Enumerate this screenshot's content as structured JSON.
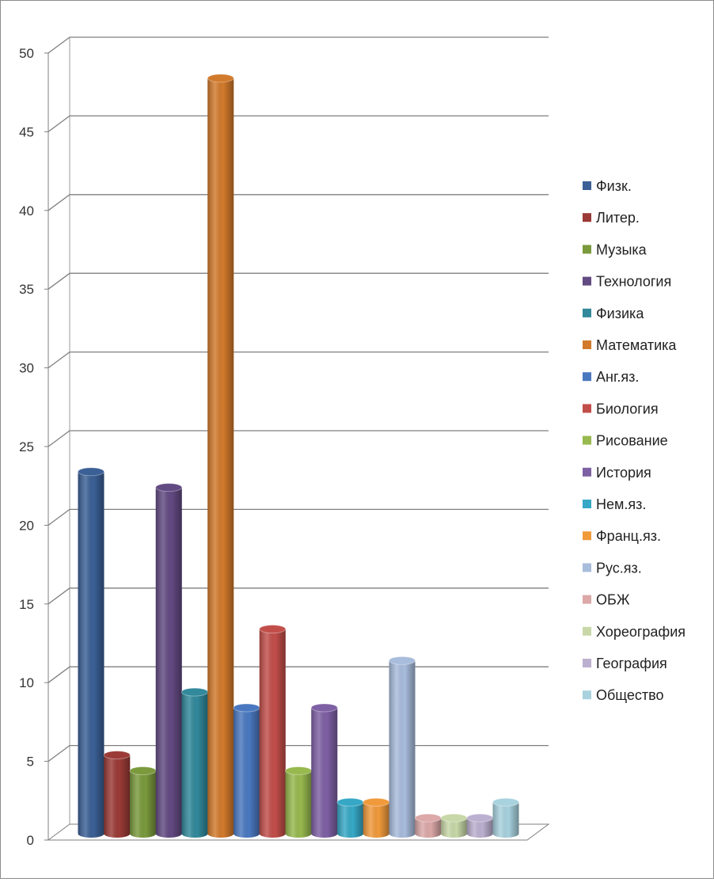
{
  "chart_data": {
    "type": "bar",
    "categories": [
      "Физк.",
      "Литер.",
      "Музыка",
      "Технология",
      "Физика",
      "Математика",
      "Анг.яз.",
      "Биология",
      "Рисование",
      "История",
      "Нем.яз.",
      "Франц.яз.",
      "Рус.яз.",
      "ОБЖ",
      "Хореография",
      "География",
      "Общество"
    ],
    "values": [
      23,
      5,
      4,
      22,
      9,
      48,
      8,
      13,
      4,
      8,
      2,
      2,
      11,
      1,
      1,
      1,
      2
    ],
    "colors": [
      "#3b6096",
      "#9b3a36",
      "#7a9a3c",
      "#624a82",
      "#31899b",
      "#d27a2c",
      "#4a78c0",
      "#c24e4a",
      "#97b94e",
      "#7e60a4",
      "#36a8c6",
      "#f19a3c",
      "#a8bcdc",
      "#dca8a8",
      "#c8d8a8",
      "#bcb0d0",
      "#a8d2de"
    ],
    "ylim": [
      0,
      50
    ],
    "yticks": [
      "0",
      "5",
      "10",
      "15",
      "20",
      "25",
      "30",
      "35",
      "40",
      "45",
      "50"
    ],
    "grid": true,
    "legend_position": "right",
    "style": "3d-cylinder"
  }
}
